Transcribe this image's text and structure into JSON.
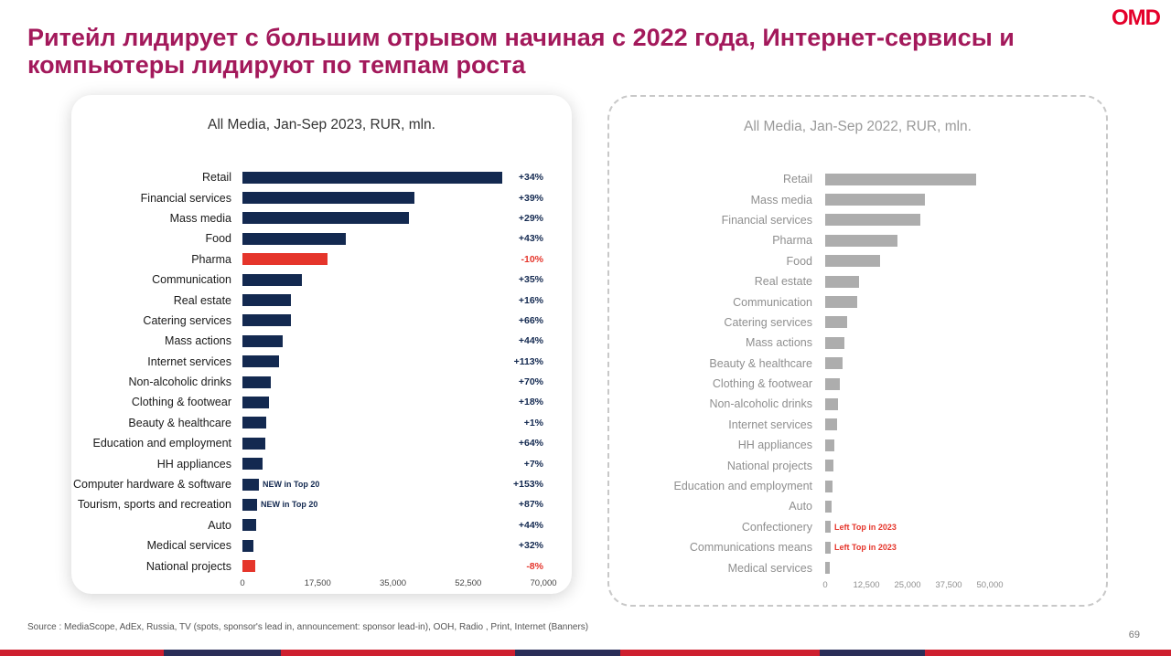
{
  "slide": {
    "title": "Ритейл лидирует с большим отрывом начиная с 2022 года, Интернет-сервисы и\nкомпьютеры лидируют по темпам роста",
    "logo_text": "OMD",
    "source": "Source : MediaScope, AdEx, Russia, TV (spots, sponsor's lead in, announcement: sponsor lead-in), OOH, Radio , Print, Internet (Banners)",
    "page_number": "69"
  },
  "colors": {
    "title": "#A3195B",
    "navy": "#132950",
    "red": "#E5352B",
    "gray_bar": "#ADADAD",
    "gray_text": "#8F8F8F",
    "logo_red": "#E4012B"
  },
  "chart_data": [
    {
      "type": "bar",
      "orientation": "horizontal",
      "title": "All Media, Jan-Sep 2023, RUR, mln.",
      "xlabel": "",
      "ylabel": "",
      "xlim": [
        0,
        70000
      ],
      "xticks": [
        0,
        17500,
        35000,
        52500,
        70000
      ],
      "xtick_labels": [
        "0",
        "17,500",
        "35,000",
        "52,500",
        "70,000"
      ],
      "grid": false,
      "legend": false,
      "bar_color": "#132950",
      "highlight_color": "#E5352B",
      "highlight_indices": [
        4,
        19
      ],
      "annotation_color": "#132950",
      "categories": [
        "Retail",
        "Financial services",
        "Mass media",
        "Food",
        "Pharma",
        "Communication",
        "Real estate",
        "Catering services",
        "Mass actions",
        "Internet services",
        "Non-alcoholic drinks",
        "Clothing & footwear",
        "Beauty & healthcare",
        "Education and employment",
        "HH appliances",
        "Computer hardware & software",
        "Tourism, sports and recreation",
        "Auto",
        "Medical services",
        "National projects"
      ],
      "values": [
        60500,
        40000,
        38800,
        24000,
        19800,
        13800,
        11300,
        11200,
        9400,
        8500,
        6600,
        6200,
        5500,
        5300,
        4700,
        3800,
        3400,
        3200,
        2600,
        3000
      ],
      "data_labels": [
        "+34%",
        "+39%",
        "+29%",
        "+43%",
        "-10%",
        "+35%",
        "+16%",
        "+66%",
        "+44%",
        "+113%",
        "+70%",
        "+18%",
        "+1%",
        "+64%",
        "+7%",
        "+153%",
        "+87%",
        "+44%",
        "+32%",
        "-8%"
      ],
      "annotations": [
        {
          "index": 15,
          "text": "NEW in Top 20"
        },
        {
          "index": 16,
          "text": "NEW in Top 20"
        }
      ]
    },
    {
      "type": "bar",
      "orientation": "horizontal",
      "title": "All Media, Jan-Sep 2022, RUR, mln.",
      "xlabel": "",
      "ylabel": "",
      "xlim": [
        0,
        50000
      ],
      "xticks": [
        0,
        12500,
        25000,
        37500,
        50000
      ],
      "xtick_labels": [
        "0",
        "12,500",
        "25,000",
        "37,500",
        "50,000"
      ],
      "grid": false,
      "legend": false,
      "bar_color": "#ADADAD",
      "highlight_color": "#E5352B",
      "highlight_indices": [],
      "annotation_color": "#E5352B",
      "categories": [
        "Retail",
        "Mass media",
        "Financial services",
        "Pharma",
        "Food",
        "Real estate",
        "Communication",
        "Catering services",
        "Mass actions",
        "Beauty & healthcare",
        "Clothing & footwear",
        "Non-alcoholic drinks",
        "Internet services",
        "HH appliances",
        "National projects",
        "Education and employment",
        "Auto",
        "Confectionery",
        "Communications means",
        "Medical services"
      ],
      "values": [
        45800,
        30300,
        28900,
        22000,
        16700,
        10300,
        9700,
        6700,
        5800,
        5300,
        4400,
        3900,
        3600,
        2800,
        2500,
        2200,
        1900,
        1700,
        1700,
        1400
      ],
      "annotations": [
        {
          "index": 17,
          "text": "Left Top in 2023"
        },
        {
          "index": 18,
          "text": "Left Top in 2023"
        }
      ]
    }
  ]
}
